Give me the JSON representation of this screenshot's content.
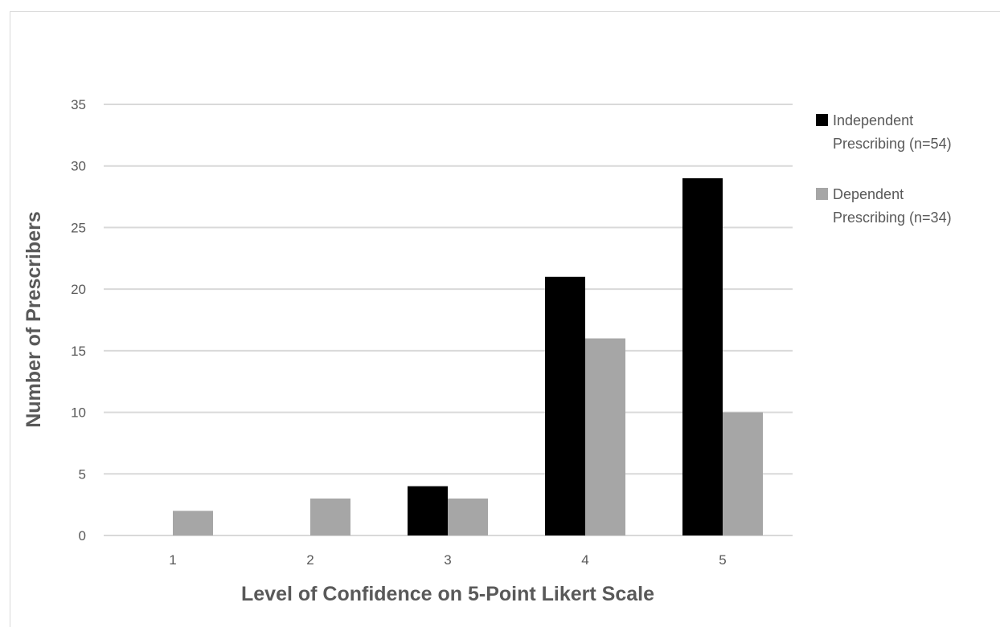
{
  "chart_data": {
    "type": "bar",
    "title": "",
    "xlabel": "Level of Confidence on 5-Point Likert Scale",
    "ylabel": "Number of Prescribers",
    "categories": [
      "1",
      "2",
      "3",
      "4",
      "5"
    ],
    "ylim": [
      0,
      35
    ],
    "yticks": [
      0,
      5,
      10,
      15,
      20,
      25,
      30,
      35
    ],
    "grid": true,
    "legend_position": "right",
    "series": [
      {
        "name": "Independent Prescribing (n=54)",
        "legend_lines": [
          "Independent",
          "Prescribing (n=54)"
        ],
        "color": "#000000",
        "values": [
          0,
          0,
          4,
          21,
          29
        ]
      },
      {
        "name": "Dependent Prescribing (n=34)",
        "legend_lines": [
          "Dependent",
          "Prescribing (n=34)"
        ],
        "color": "#a6a6a6",
        "values": [
          2,
          3,
          3,
          16,
          10
        ]
      }
    ]
  }
}
